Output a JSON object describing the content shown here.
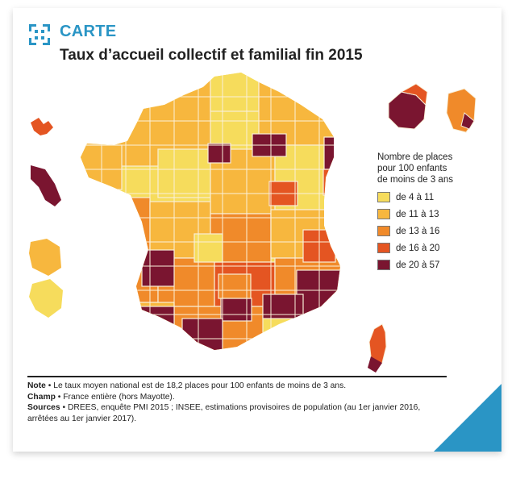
{
  "header": {
    "kicker": "CARTE",
    "title": "Taux d’accueil collectif et familial fin 2015",
    "icon": "expand-icon"
  },
  "legend": {
    "title": "Nombre de places\npour 100 enfants\nde moins de 3 ans",
    "items": [
      {
        "label": "de 4 à 11",
        "color": "#f6dc5c"
      },
      {
        "label": "de 11 à 13",
        "color": "#f7b73e"
      },
      {
        "label": "de 13 à 16",
        "color": "#f08a2a"
      },
      {
        "label": "de 16 à 20",
        "color": "#e45522"
      },
      {
        "label": "de 20 à 57",
        "color": "#7a1530"
      }
    ]
  },
  "notes": {
    "note_label": "Note",
    "note_text": "Le taux moyen national est de 18,2 places pour 100 enfants de moins de 3 ans.",
    "champ_label": "Champ",
    "champ_text": "France entière (hors Mayotte).",
    "sources_label": "Sources",
    "sources_text_1": "DREES, enquête PMI 2015 ; INSEE, estimations provisoires de population (au 1er janvier 2016,",
    "sources_text_2": "arrêtées au 1er janvier 2017)."
  },
  "colors": {
    "accent": "#2a95c5",
    "border": "#e9e2cf"
  }
}
